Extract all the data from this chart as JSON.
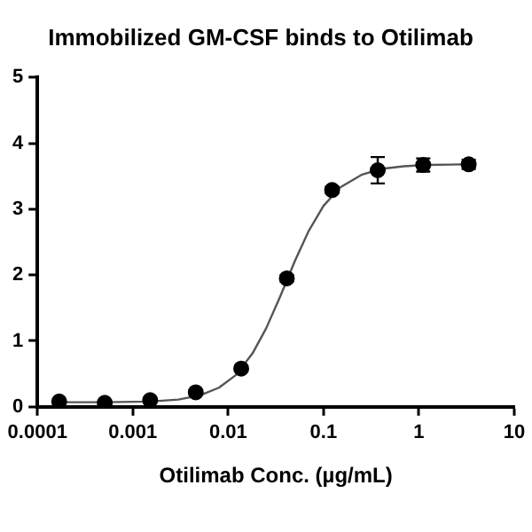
{
  "chart_data": {
    "type": "scatter",
    "title": "Immobilized GM-CSF binds to Otilimab",
    "xlabel": "Otilimab Conc. (µg/mL)",
    "log": "x",
    "xlim": [
      0.0001,
      10
    ],
    "xticks": [
      0.0001,
      0.001,
      0.01,
      0.1,
      1,
      10
    ],
    "ylim": [
      0,
      5
    ],
    "yticks": [
      0,
      1,
      2,
      3,
      4,
      5
    ],
    "grid": false,
    "legend": false,
    "series": [
      {
        "marker": "circle",
        "color": "#000000",
        "x": [
          0.000169,
          0.000508,
          0.00152,
          0.00457,
          0.0137,
          0.0412,
          0.123,
          0.37,
          1.11,
          3.33
        ],
        "values": [
          0.08,
          0.06,
          0.1,
          0.22,
          0.58,
          1.95,
          3.29,
          3.59,
          3.67,
          3.68
        ],
        "errors": [
          null,
          null,
          null,
          0.03,
          0.04,
          0.05,
          0.05,
          0.2,
          0.1,
          0.07
        ]
      },
      {
        "type": "line",
        "marker": "none",
        "color": "#555555",
        "x": [
          0.00017,
          0.0005,
          0.0015,
          0.003,
          0.005,
          0.008,
          0.012,
          0.018,
          0.025,
          0.035,
          0.05,
          0.07,
          0.1,
          0.15,
          0.25,
          0.4,
          0.7,
          1.2,
          3.33
        ],
        "values": [
          0.07,
          0.07,
          0.08,
          0.11,
          0.17,
          0.29,
          0.48,
          0.81,
          1.19,
          1.67,
          2.21,
          2.67,
          3.05,
          3.33,
          3.52,
          3.61,
          3.65,
          3.67,
          3.68
        ]
      }
    ]
  }
}
